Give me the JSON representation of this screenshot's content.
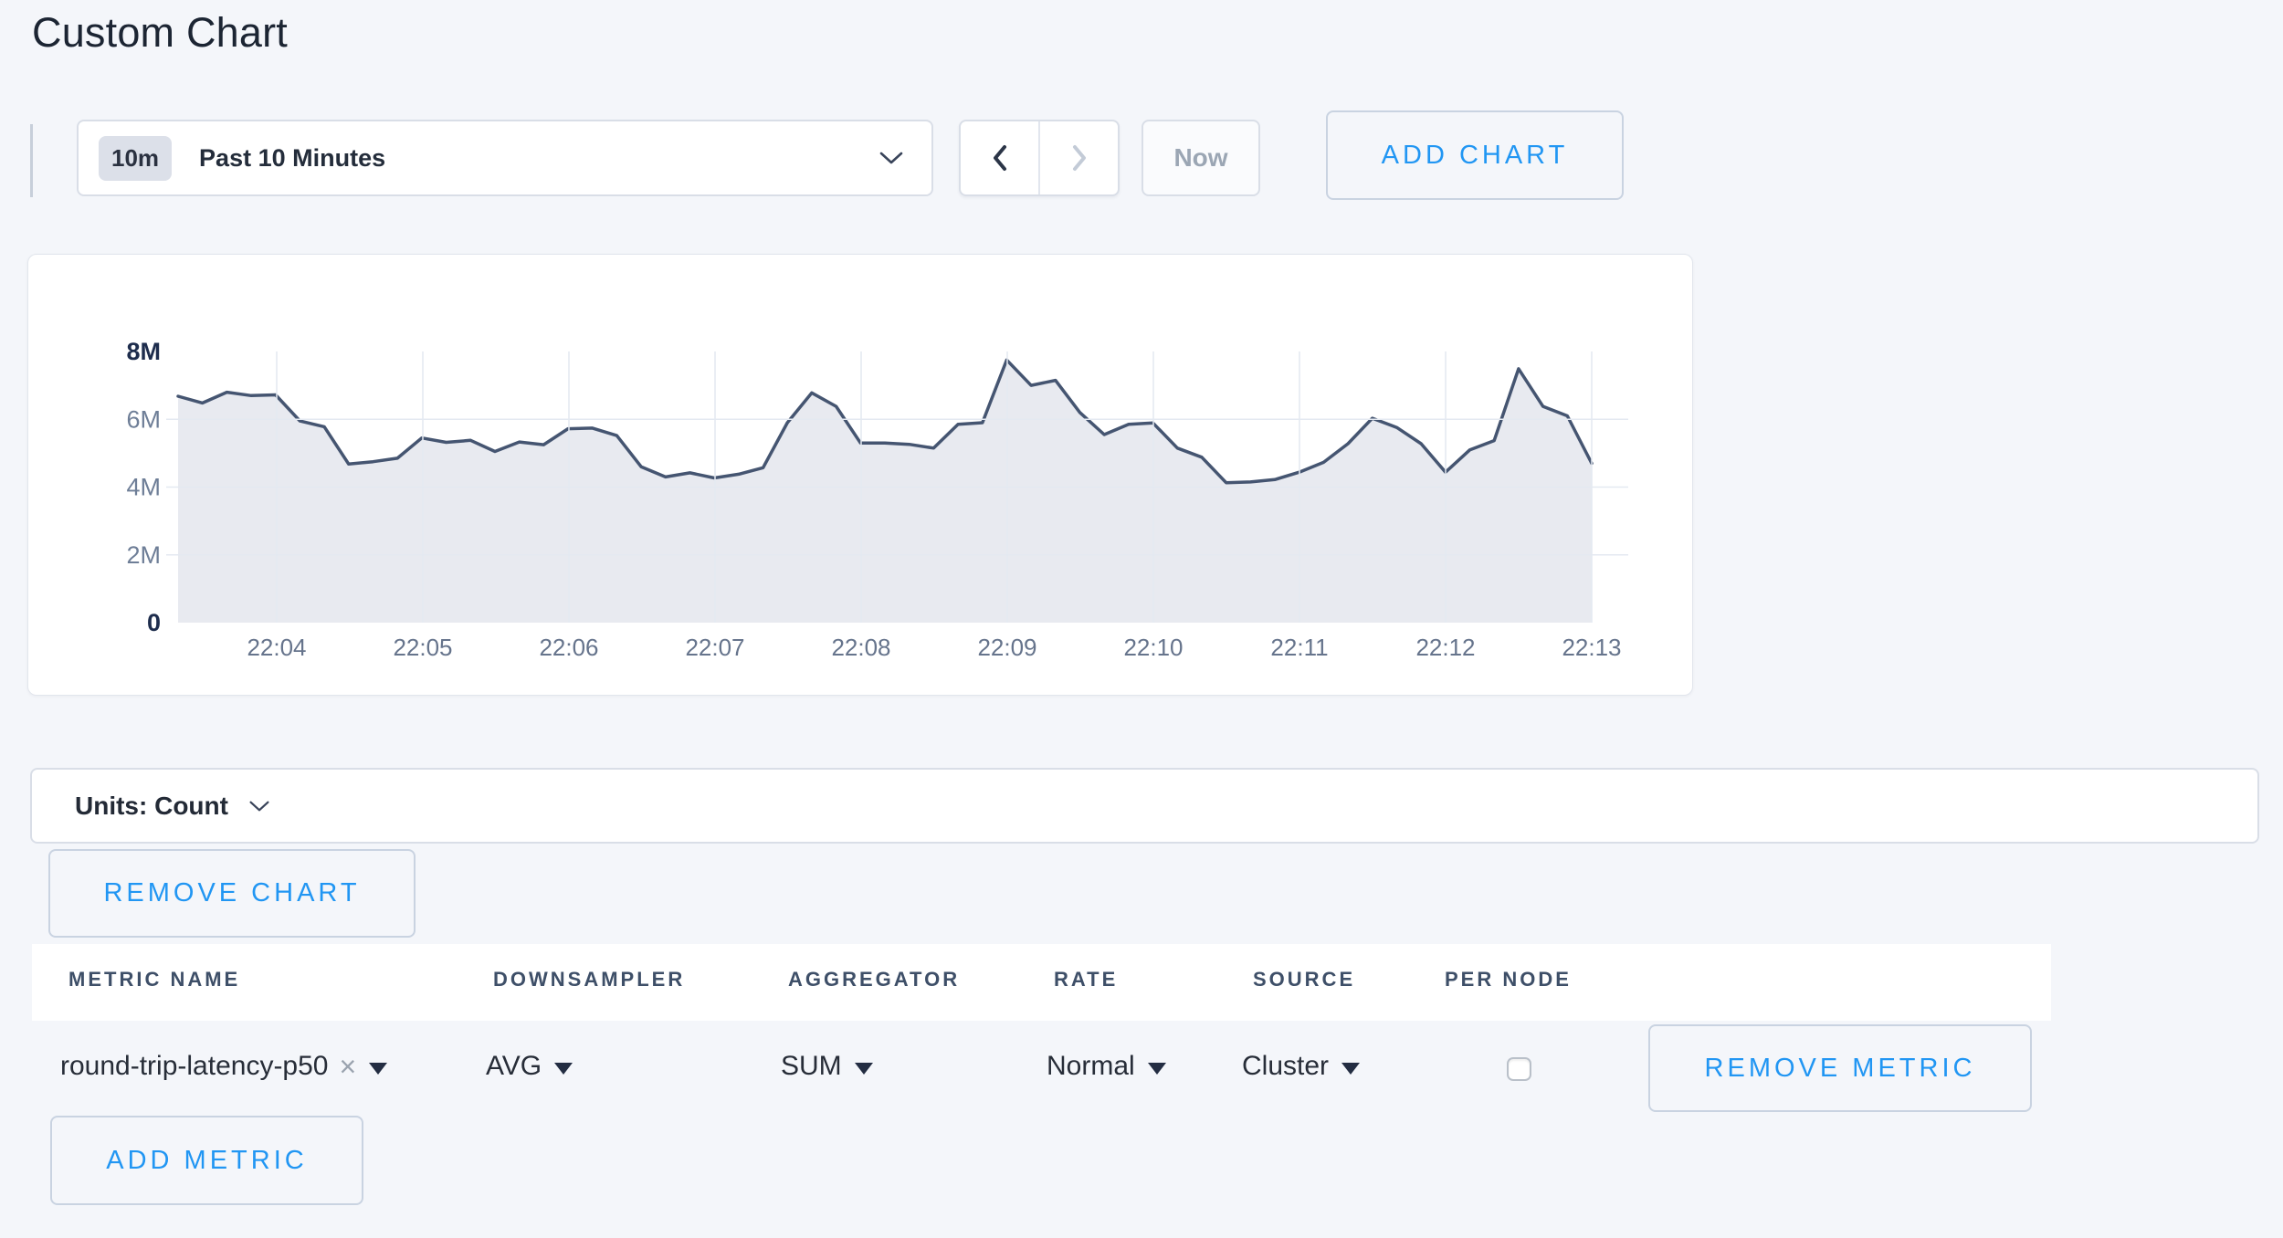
{
  "title": "Custom Chart",
  "colors": {
    "page_bg": "#f4f6fa",
    "accent_blue": "#2196f3",
    "line": "#455571",
    "area_fill": "#e8eaf0",
    "grid": "#e4e9f1",
    "axis_strong": "#1e2d4d",
    "axis_muted": "#6e7e97",
    "x_label": "#66748c"
  },
  "toolbar": {
    "time_window_badge": "10m",
    "time_window_label": "Past 10 Minutes",
    "now_label": "Now",
    "add_chart_label": "ADD CHART"
  },
  "units_bar": {
    "label": "Units: Count"
  },
  "remove_chart_label": "REMOVE CHART",
  "add_metric_label": "ADD METRIC",
  "metrics_table": {
    "columns": [
      "METRIC NAME",
      "DOWNSAMPLER",
      "AGGREGATOR",
      "RATE",
      "SOURCE",
      "PER NODE"
    ],
    "rows": [
      {
        "metric_name": "round-trip-latency-p50",
        "clear_icon": "×",
        "downsampler": "AVG",
        "aggregator": "SUM",
        "rate": "Normal",
        "source": "Cluster",
        "per_node_checked": false,
        "remove_label": "REMOVE METRIC"
      }
    ]
  },
  "chart_data": {
    "type": "area",
    "title": "",
    "unit": "Count",
    "legend": false,
    "grid": true,
    "start_time": "22:03:20",
    "interval_seconds": 10,
    "series": [
      {
        "name": "round-trip-latency-p50",
        "values_millions": [
          6.68,
          6.48,
          6.8,
          6.7,
          6.72,
          5.95,
          5.78,
          4.68,
          4.75,
          4.85,
          5.45,
          5.32,
          5.38,
          5.05,
          5.33,
          5.25,
          5.72,
          5.74,
          5.52,
          4.6,
          4.3,
          4.42,
          4.27,
          4.38,
          4.57,
          5.9,
          6.78,
          6.38,
          5.3,
          5.3,
          5.26,
          5.15,
          5.85,
          5.9,
          7.75,
          7.0,
          7.15,
          6.2,
          5.55,
          5.85,
          5.89,
          5.15,
          4.88,
          4.13,
          4.15,
          4.22,
          4.44,
          4.73,
          5.28,
          6.03,
          5.76,
          5.28,
          4.44,
          5.1,
          5.37,
          7.49,
          6.38,
          6.1,
          4.7
        ]
      }
    ],
    "x_ticks": [
      "22:04",
      "22:05",
      "22:06",
      "22:07",
      "22:08",
      "22:09",
      "22:10",
      "22:11",
      "22:12",
      "22:13"
    ],
    "y_ticks": [
      {
        "label": "0",
        "value_millions": 0
      },
      {
        "label": "2M",
        "value_millions": 2
      },
      {
        "label": "4M",
        "value_millions": 4
      },
      {
        "label": "6M",
        "value_millions": 6
      },
      {
        "label": "8M",
        "value_millions": 8
      }
    ],
    "ylim_millions": [
      0,
      8
    ]
  }
}
